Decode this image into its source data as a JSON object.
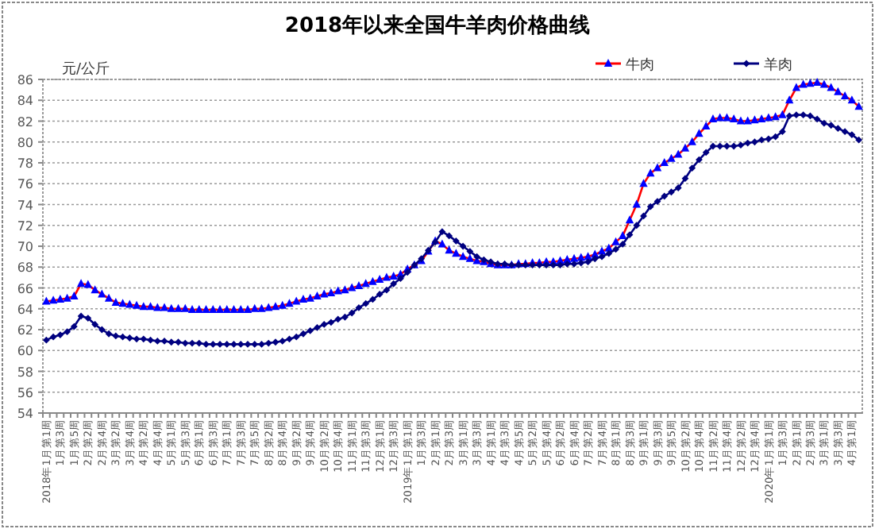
{
  "chart_data": {
    "type": "line",
    "title": "2018年以来全国牛羊肉价格曲线",
    "ylabel": "元/公斤",
    "categories": [
      "2018年1月第1周",
      null,
      "1月第3周",
      null,
      "1月第5周",
      null,
      "2月第2周",
      null,
      "2月第4周",
      null,
      "3月第2周",
      null,
      "3月第4周",
      null,
      "4月第2周",
      null,
      "4月第4周",
      null,
      "5月第1周",
      null,
      "5月第3周",
      null,
      "6月第1周",
      null,
      "6月第3周",
      null,
      "7月第1周",
      null,
      "7月第3周",
      null,
      "7月第5周",
      null,
      "8月第2周",
      null,
      "8月第4周",
      null,
      "9月第2周",
      null,
      "9月第4周",
      null,
      "10月第2周",
      null,
      "10月第4周",
      null,
      "11月第1周",
      null,
      "11月第3周",
      null,
      "12月第1周",
      null,
      "12月第3周",
      null,
      "2019年1月第1周",
      null,
      "1月第3周",
      null,
      "2月第1周",
      null,
      "2月第3周",
      null,
      "3月第1周",
      null,
      "3月第3周",
      null,
      "4月第1周",
      null,
      "4月第3周",
      null,
      "4月第5周",
      null,
      "5月第2周",
      null,
      "5月第4周",
      null,
      "6月第2周",
      null,
      "6月第4周",
      null,
      "7月第2周",
      null,
      "7月第4周",
      null,
      "8月第1周",
      null,
      "8月第3周",
      null,
      "9月第1周",
      null,
      "9月第3周",
      null,
      "9月第5周",
      null,
      "10月第2周",
      null,
      "10月第4周",
      null,
      "11月第2周",
      null,
      "11月第4周",
      null,
      "12月第2周",
      null,
      "12月第4周",
      null,
      "2020年1月第1周",
      null,
      "1月第3周",
      null,
      "2月第1周",
      null,
      "2月第3周",
      null,
      "3月第1周",
      null,
      "3月第3周",
      null,
      "4月第1周",
      null
    ],
    "series": [
      {
        "name": "牛肉",
        "color": "#0000ff",
        "marker": "triangle",
        "values": [
          64.7,
          64.8,
          64.9,
          65.0,
          65.2,
          66.4,
          66.3,
          65.8,
          65.4,
          65.0,
          64.6,
          64.5,
          64.4,
          64.3,
          64.2,
          64.2,
          64.1,
          64.1,
          64.0,
          64.0,
          64.0,
          63.9,
          63.9,
          63.9,
          63.9,
          63.9,
          63.9,
          63.9,
          63.9,
          63.9,
          64.0,
          64.0,
          64.1,
          64.2,
          64.3,
          64.5,
          64.7,
          64.9,
          65.0,
          65.2,
          65.4,
          65.5,
          65.7,
          65.8,
          66.0,
          66.2,
          66.4,
          66.6,
          66.8,
          67.0,
          67.1,
          67.3,
          67.8,
          68.2,
          68.6,
          69.5,
          70.5,
          70.2,
          69.6,
          69.3,
          69.0,
          68.8,
          68.6,
          68.5,
          68.3,
          68.2,
          68.2,
          68.2,
          68.3,
          68.3,
          68.4,
          68.4,
          68.5,
          68.5,
          68.6,
          68.7,
          68.8,
          68.9,
          69.0,
          69.2,
          69.5,
          69.8,
          70.4,
          71.0,
          72.5,
          74.0,
          76.0,
          77.0,
          77.5,
          78.0,
          78.4,
          78.8,
          79.4,
          80.0,
          80.8,
          81.5,
          82.2,
          82.3,
          82.3,
          82.2,
          82.0,
          82.0,
          82.1,
          82.2,
          82.3,
          82.4,
          82.6,
          84.0,
          85.2,
          85.5,
          85.6,
          85.7,
          85.5,
          85.2,
          84.8,
          84.4,
          84.0,
          83.4
        ]
      },
      {
        "name": "羊肉",
        "color": "#000080",
        "marker": "diamond",
        "values": [
          61.0,
          61.3,
          61.5,
          61.8,
          62.3,
          63.3,
          63.1,
          62.5,
          62.0,
          61.6,
          61.4,
          61.3,
          61.2,
          61.1,
          61.1,
          61.0,
          60.9,
          60.9,
          60.8,
          60.8,
          60.7,
          60.7,
          60.7,
          60.6,
          60.6,
          60.6,
          60.6,
          60.6,
          60.6,
          60.6,
          60.6,
          60.6,
          60.7,
          60.8,
          60.9,
          61.1,
          61.3,
          61.6,
          61.9,
          62.2,
          62.5,
          62.7,
          63.0,
          63.2,
          63.6,
          64.1,
          64.5,
          64.9,
          65.4,
          65.8,
          66.4,
          66.9,
          67.5,
          68.2,
          68.8,
          69.6,
          70.4,
          71.4,
          71.0,
          70.5,
          70.0,
          69.5,
          69.0,
          68.7,
          68.5,
          68.3,
          68.3,
          68.2,
          68.2,
          68.2,
          68.2,
          68.2,
          68.2,
          68.2,
          68.2,
          68.3,
          68.3,
          68.4,
          68.5,
          68.8,
          69.0,
          69.3,
          69.7,
          70.2,
          71.1,
          72.0,
          72.9,
          73.8,
          74.3,
          74.8,
          75.2,
          75.6,
          76.5,
          77.5,
          78.3,
          79.0,
          79.6,
          79.6,
          79.6,
          79.6,
          79.7,
          79.9,
          80.0,
          80.2,
          80.3,
          80.5,
          81.0,
          82.5,
          82.6,
          82.6,
          82.5,
          82.2,
          81.8,
          81.6,
          81.3,
          81.0,
          80.7,
          80.2
        ]
      }
    ],
    "ylim": [
      54,
      86
    ],
    "yticks": [
      54,
      56,
      58,
      60,
      62,
      64,
      66,
      68,
      70,
      72,
      74,
      76,
      78,
      80,
      82,
      84,
      86
    ],
    "grid": "y",
    "legend": "top right",
    "line_style": "solid"
  }
}
